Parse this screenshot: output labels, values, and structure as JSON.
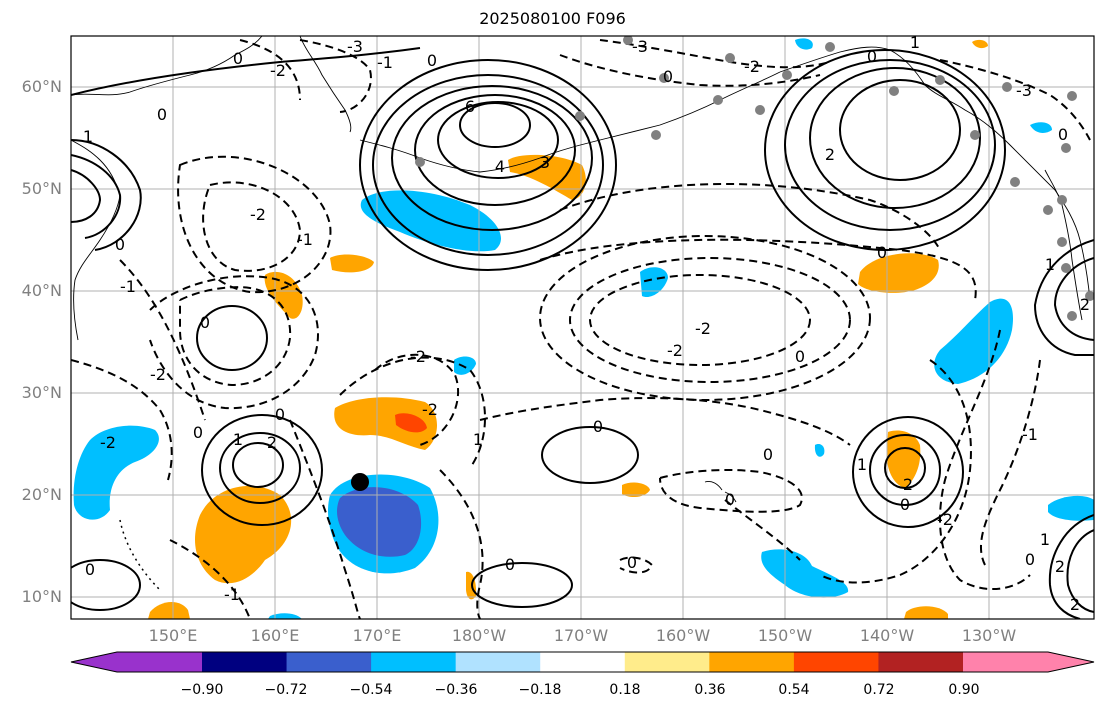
{
  "title": "2025080100 F096",
  "map": {
    "lat_labels": [
      "60°N",
      "50°N",
      "40°N",
      "30°N",
      "20°N",
      "10°N"
    ],
    "lon_labels": [
      "150°E",
      "160°E",
      "170°E",
      "180°W",
      "170°W",
      "160°W",
      "150°W",
      "140°W",
      "130°W"
    ],
    "gridlines": true,
    "contour_line_color": "#000000",
    "gridline_color": "#b0b0b0",
    "coastline_color": "#000000",
    "station_marker_color": "#808080",
    "storm_marker_color": "#000000",
    "contour_labels": [
      "-3",
      "-2",
      "-1",
      "0",
      "1",
      "2",
      "3",
      "4",
      "6"
    ]
  },
  "colorbar": {
    "tick_labels": [
      "−0.90",
      "−0.72",
      "−0.54",
      "−0.36",
      "−0.18",
      "0.18",
      "0.36",
      "0.54",
      "0.72",
      "0.90"
    ],
    "colors": [
      "#9932cc",
      "#000080",
      "#3a5fcd",
      "#00bfff",
      "#b0e2ff",
      "#ffffff",
      "#ffec8b",
      "#ffa500",
      "#ff4500",
      "#b22222",
      "#ff82ab"
    ],
    "extend": "both"
  }
}
